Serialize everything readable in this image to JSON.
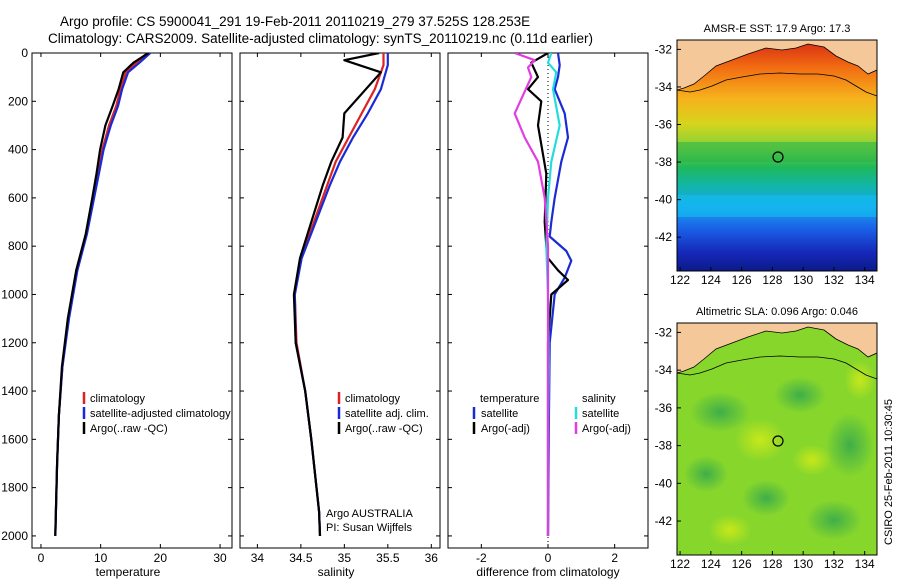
{
  "title": {
    "line1": "Argo profile: CS 5900041_291 19-Feb-2011 20110219_279 37.525S 128.253E",
    "line2": "Climatology: CARS2009. Satellite-adjusted climatology: synTS_20110219.nc (0.11d earlier)"
  },
  "footer_stamp": "CSIRO 25-Feb-2011 10:30:45",
  "colors": {
    "climatology": "#dd2222",
    "satellite": "#1a2bd6",
    "argo": "#000000",
    "salinity_sat": "#22dddd",
    "salinity_argo": "#e23ce2",
    "land": "#f5c89a"
  },
  "chart_data": [
    {
      "type": "line",
      "panel": "temperature",
      "xlabel": "temperature",
      "ylabel": "",
      "xlim": [
        -1.5,
        32
      ],
      "ylim": [
        2050,
        0
      ],
      "xticks": [
        0,
        10,
        20,
        30
      ],
      "yticks": [
        0,
        200,
        400,
        600,
        800,
        1000,
        1200,
        1400,
        1600,
        1800,
        2000
      ],
      "legend_position": "lower-right",
      "series": [
        {
          "name": "climatology",
          "color_key": "climatology",
          "x": [
            17.8,
            16.0,
            14.2,
            13.3,
            12.6,
            11.4,
            10.3,
            9.6,
            8.8,
            7.6,
            6.0,
            4.6,
            3.6,
            3.0,
            2.7,
            2.5,
            2.4
          ],
          "y": [
            0,
            40,
            80,
            150,
            220,
            300,
            400,
            500,
            600,
            750,
            900,
            1100,
            1300,
            1500,
            1700,
            1900,
            2000
          ]
        },
        {
          "name": "satellite-adjusted climatology",
          "color_key": "satellite",
          "x": [
            18.3,
            16.5,
            14.6,
            13.6,
            12.9,
            11.7,
            10.5,
            9.7,
            8.9,
            7.7,
            6.1,
            4.7,
            3.6,
            3.0,
            2.7,
            2.5,
            2.4
          ],
          "y": [
            0,
            40,
            80,
            150,
            220,
            300,
            400,
            500,
            600,
            750,
            900,
            1100,
            1300,
            1500,
            1700,
            1900,
            2000
          ]
        },
        {
          "name": "Argo(..raw -QC)",
          "color_key": "argo",
          "x": [
            18.0,
            15.5,
            13.8,
            13.0,
            12.0,
            10.8,
            9.9,
            9.3,
            8.6,
            7.5,
            5.9,
            4.5,
            3.5,
            3.0,
            2.7,
            2.5,
            2.4
          ],
          "y": [
            0,
            40,
            80,
            150,
            220,
            300,
            400,
            500,
            600,
            750,
            900,
            1100,
            1300,
            1500,
            1700,
            1900,
            2000
          ]
        }
      ],
      "legend": [
        "climatology",
        "satellite-adjusted climatology",
        "Argo(..raw -QC)"
      ]
    },
    {
      "type": "line",
      "panel": "salinity",
      "xlabel": "salinity",
      "ylabel": "",
      "xlim": [
        33.8,
        36.1
      ],
      "ylim": [
        2050,
        0
      ],
      "xticks": [
        34,
        34.5,
        35,
        35.5,
        36
      ],
      "legend_position": "lower-right",
      "annotation": [
        "Argo AUSTRALIA",
        "PI: Susan Wijffels"
      ],
      "series": [
        {
          "name": "climatology",
          "color_key": "climatology",
          "x": [
            35.45,
            35.45,
            35.35,
            35.2,
            35.05,
            34.9,
            34.8,
            34.65,
            34.5,
            34.43,
            34.45,
            34.55,
            34.62,
            34.68,
            34.71,
            34.72
          ],
          "y": [
            0,
            50,
            150,
            250,
            350,
            450,
            550,
            700,
            850,
            1000,
            1200,
            1400,
            1600,
            1800,
            1900,
            2000
          ]
        },
        {
          "name": "satellite adj. clim.",
          "color_key": "satellite",
          "x": [
            35.5,
            35.5,
            35.42,
            35.27,
            35.1,
            34.95,
            34.83,
            34.67,
            34.51,
            34.43,
            34.44,
            34.55,
            34.62,
            34.68,
            34.71,
            34.72
          ],
          "y": [
            0,
            50,
            150,
            250,
            350,
            450,
            550,
            700,
            850,
            1000,
            1200,
            1400,
            1600,
            1800,
            1900,
            2000
          ]
        },
        {
          "name": "Argo(..raw -QC)",
          "color_key": "argo",
          "x": [
            35.4,
            35.0,
            35.42,
            35.0,
            34.98,
            34.85,
            34.75,
            34.62,
            34.49,
            34.42,
            34.44,
            34.55,
            34.62,
            34.68,
            34.71,
            34.72
          ],
          "y": [
            0,
            30,
            80,
            250,
            350,
            450,
            550,
            700,
            850,
            1000,
            1200,
            1400,
            1600,
            1800,
            1900,
            2000
          ]
        }
      ],
      "legend": [
        "climatology",
        "satellite adj. clim.",
        "Argo(..raw -QC)"
      ]
    },
    {
      "type": "line",
      "panel": "difference",
      "xlabel": "difference from climatology",
      "ylabel": "",
      "xlim": [
        -3,
        3
      ],
      "ylim": [
        2050,
        0
      ],
      "xticks": [
        -2,
        0,
        2
      ],
      "legend_position": "lower-center",
      "series": [
        {
          "name": "temperature satellite",
          "color_key": "satellite",
          "x": [
            0.3,
            0.35,
            0.3,
            0.2,
            0.5,
            0.6,
            0.4,
            0.2,
            0.1,
            0.05,
            0.55,
            0.7,
            0.5,
            0.2,
            0.05,
            0.02,
            0.0
          ],
          "y": [
            0,
            50,
            100,
            150,
            250,
            350,
            450,
            600,
            700,
            760,
            820,
            860,
            930,
            1000,
            1200,
            1600,
            2000
          ]
        },
        {
          "name": "temperature Argo(-adj)",
          "color_key": "argo",
          "x": [
            0.0,
            -0.5,
            -0.3,
            -0.6,
            -0.2,
            -0.3,
            -0.05,
            -0.1,
            -0.05,
            0.0,
            0.3,
            0.6,
            0.1,
            0.0,
            0.0,
            0.0
          ],
          "y": [
            0,
            40,
            100,
            150,
            200,
            300,
            500,
            700,
            800,
            850,
            900,
            940,
            1000,
            1200,
            1600,
            2000
          ]
        },
        {
          "name": "salinity satellite",
          "color_key": "salinity_sat",
          "x": [
            0.1,
            0.0,
            0.25,
            0.15,
            0.35,
            0.1,
            0.0,
            -0.05,
            0.0,
            0.02,
            0.0,
            0.0
          ],
          "y": [
            0,
            40,
            80,
            150,
            300,
            450,
            600,
            800,
            1000,
            1300,
            1600,
            2000
          ]
        },
        {
          "name": "salinity Argo(-adj)",
          "color_key": "salinity_argo",
          "x": [
            -1.0,
            -0.4,
            -0.6,
            -0.5,
            -1.0,
            -0.7,
            -0.3,
            -0.1,
            0.0,
            0.0,
            0.0,
            0.0
          ],
          "y": [
            0,
            30,
            60,
            100,
            250,
            350,
            450,
            600,
            800,
            1100,
            1600,
            2000
          ]
        }
      ],
      "legend_headers": [
        "temperature",
        "salinity"
      ],
      "legend": [
        "satellite",
        "Argo(-adj)",
        "satellite",
        "Argo(-adj)"
      ]
    },
    {
      "type": "heatmap",
      "panel": "sst_map",
      "title": "AMSR-E SST: 17.9 Argo: 17.3",
      "xlim": [
        121.8,
        134.8
      ],
      "ylim": [
        -43.8,
        -31.5
      ],
      "xticks": [
        122,
        124,
        126,
        128,
        130,
        132,
        134
      ],
      "yticks": [
        -32,
        -34,
        -36,
        -38,
        -40,
        -42
      ],
      "marker": {
        "lon": 128.253,
        "lat": -37.525
      }
    },
    {
      "type": "heatmap",
      "panel": "sla_map",
      "title": "Altimetric SLA: 0.096 Argo: 0.046",
      "xlim": [
        121.8,
        134.8
      ],
      "ylim": [
        -43.8,
        -31.5
      ],
      "xticks": [
        122,
        124,
        126,
        128,
        130,
        132,
        134
      ],
      "yticks": [
        -32,
        -34,
        -36,
        -38,
        -40,
        -42
      ],
      "marker": {
        "lon": 128.253,
        "lat": -37.525
      }
    }
  ]
}
